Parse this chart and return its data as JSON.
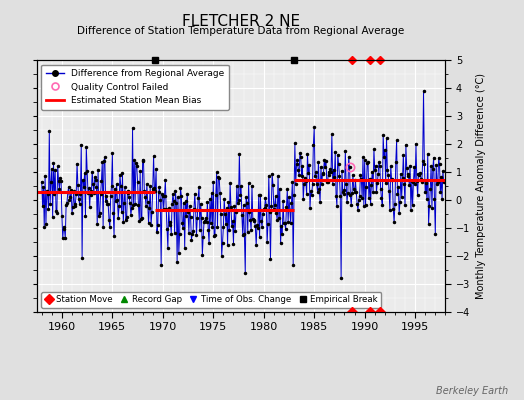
{
  "title": "FLETCHER 2 NE",
  "subtitle": "Difference of Station Temperature Data from Regional Average",
  "ylabel_right": "Monthly Temperature Anomaly Difference (°C)",
  "xlim": [
    1957.5,
    1998.0
  ],
  "ylim": [
    -4,
    5
  ],
  "yticks": [
    -4,
    -3,
    -2,
    -1,
    0,
    1,
    2,
    3,
    4,
    5
  ],
  "xticks": [
    1960,
    1965,
    1970,
    1975,
    1980,
    1985,
    1990,
    1995
  ],
  "background_color": "#e0e0e0",
  "plot_bg_color": "#ebebeb",
  "grid_color": "#ffffff",
  "line_color": "#0000cc",
  "dot_color": "#000000",
  "bias_color": "#ff0000",
  "watermark": "Berkeley Earth",
  "segments": [
    {
      "start": 1957.5,
      "end": 1969.25,
      "bias": 0.3
    },
    {
      "start": 1969.25,
      "end": 1983.0,
      "bias": -0.35
    },
    {
      "start": 1983.0,
      "end": 1998.0,
      "bias": 0.7
    }
  ],
  "top_markers": [
    {
      "year": 1969.25,
      "type": "empirical_break"
    },
    {
      "year": 1983.0,
      "type": "empirical_break"
    },
    {
      "year": 1988.75,
      "type": "station_move"
    },
    {
      "year": 1990.5,
      "type": "station_move"
    },
    {
      "year": 1991.5,
      "type": "station_move"
    }
  ],
  "bottom_markers": [
    {
      "year": 1988.75,
      "type": "station_move"
    },
    {
      "year": 1990.5,
      "type": "station_move"
    },
    {
      "year": 1991.5,
      "type": "station_move"
    }
  ],
  "seed": 12
}
